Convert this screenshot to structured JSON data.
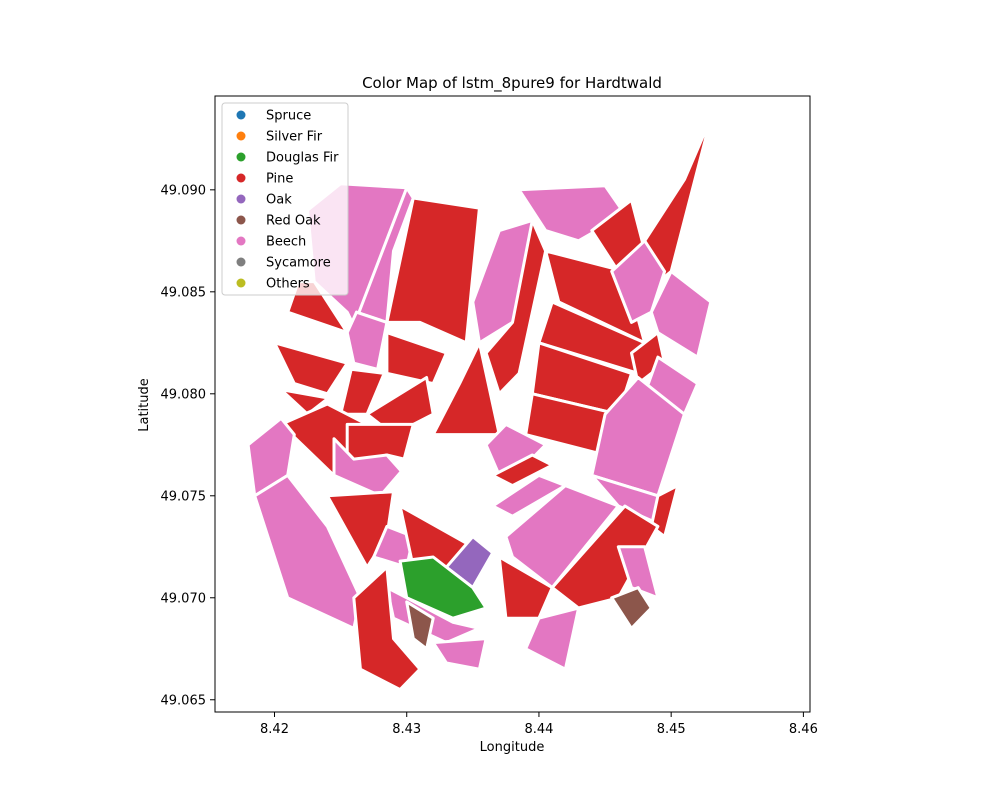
{
  "chart_data": {
    "type": "choropleth",
    "title": "Color Map of lstm_8pure9 for Hardtwald",
    "xlabel": "Longitude",
    "ylabel": "Latitude",
    "xlim": [
      8.4155,
      8.4605
    ],
    "ylim": [
      49.0644,
      49.0946
    ],
    "x_ticks": [
      "8.42",
      "8.43",
      "8.44",
      "8.45",
      "8.46"
    ],
    "y_ticks": [
      "49.065",
      "49.070",
      "49.075",
      "49.080",
      "49.085",
      "49.090"
    ],
    "legend_position": "upper-left",
    "legend": [
      {
        "label": "Spruce",
        "color": "#1f77b4"
      },
      {
        "label": "Silver Fir",
        "color": "#ff7f0e"
      },
      {
        "label": "Douglas Fir",
        "color": "#2ca02c"
      },
      {
        "label": "Pine",
        "color": "#d62728"
      },
      {
        "label": "Oak",
        "color": "#9467bd"
      },
      {
        "label": "Red Oak",
        "color": "#8c564b"
      },
      {
        "label": "Beech",
        "color": "#e377c2"
      },
      {
        "label": "Sycamore",
        "color": "#7f7f7f"
      },
      {
        "label": "Others",
        "color": "#bcbd22"
      }
    ],
    "parcels": [
      {
        "class": "Beech",
        "coords": [
          [
            8.4225,
            49.089
          ],
          [
            8.425,
            49.0903
          ],
          [
            8.43,
            49.0901
          ],
          [
            8.427,
            49.082
          ],
          [
            8.4255,
            49.084
          ],
          [
            8.423,
            49.0855
          ]
        ]
      },
      {
        "class": "Beech",
        "coords": [
          [
            8.43,
            49.0901
          ],
          [
            8.4305,
            49.0896
          ],
          [
            8.429,
            49.087
          ],
          [
            8.4285,
            49.0835
          ],
          [
            8.4262,
            49.084
          ],
          [
            8.4258,
            49.083
          ]
        ]
      },
      {
        "class": "Pine",
        "coords": [
          [
            8.4305,
            49.0896
          ],
          [
            8.4355,
            49.0891
          ],
          [
            8.4345,
            49.0825
          ],
          [
            8.431,
            49.0835
          ],
          [
            8.4285,
            49.0835
          ]
        ]
      },
      {
        "class": "Beech",
        "coords": [
          [
            8.4262,
            49.084
          ],
          [
            8.4285,
            49.0835
          ],
          [
            8.4278,
            49.0812
          ],
          [
            8.426,
            49.0815
          ],
          [
            8.4255,
            49.083
          ]
        ]
      },
      {
        "class": "Pine",
        "coords": [
          [
            8.421,
            49.084
          ],
          [
            8.4255,
            49.083
          ],
          [
            8.423,
            49.0855
          ],
          [
            8.4218,
            49.0855
          ]
        ]
      },
      {
        "class": "Pine",
        "coords": [
          [
            8.42,
            49.0825
          ],
          [
            8.4255,
            49.0815
          ],
          [
            8.424,
            49.08
          ],
          [
            8.4215,
            49.0805
          ]
        ]
      },
      {
        "class": "Pine",
        "coords": [
          [
            8.4205,
            49.0802
          ],
          [
            8.424,
            49.0798
          ],
          [
            8.4255,
            49.0805
          ],
          [
            8.4225,
            49.079
          ]
        ]
      },
      {
        "class": "Pine",
        "coords": [
          [
            8.4258,
            49.0812
          ],
          [
            8.4283,
            49.081
          ],
          [
            8.427,
            49.079
          ],
          [
            8.425,
            49.079
          ]
        ]
      },
      {
        "class": "Pine",
        "coords": [
          [
            8.4285,
            49.083
          ],
          [
            8.433,
            49.082
          ],
          [
            8.432,
            49.0805
          ],
          [
            8.4285,
            49.081
          ]
        ]
      },
      {
        "class": "Pine",
        "coords": [
          [
            8.427,
            49.079
          ],
          [
            8.4315,
            49.0808
          ],
          [
            8.432,
            49.079
          ],
          [
            8.429,
            49.078
          ]
        ]
      },
      {
        "class": "Pine",
        "coords": [
          [
            8.4205,
            49.0785
          ],
          [
            8.424,
            49.0795
          ],
          [
            8.427,
            49.0785
          ],
          [
            8.4255,
            49.076
          ],
          [
            8.4245,
            49.076
          ]
        ]
      },
      {
        "class": "Pine",
        "coords": [
          [
            8.4255,
            49.0785
          ],
          [
            8.4305,
            49.0785
          ],
          [
            8.4298,
            49.0768
          ],
          [
            8.4285,
            49.077
          ],
          [
            8.4255,
            49.0765
          ]
        ]
      },
      {
        "class": "Beech",
        "coords": [
          [
            8.418,
            49.0775
          ],
          [
            8.4205,
            49.0788
          ],
          [
            8.4215,
            49.078
          ],
          [
            8.421,
            49.076
          ],
          [
            8.4185,
            49.075
          ]
        ]
      },
      {
        "class": "Beech",
        "coords": [
          [
            8.4185,
            49.075
          ],
          [
            8.421,
            49.076
          ],
          [
            8.424,
            49.0735
          ],
          [
            8.4265,
            49.07
          ],
          [
            8.426,
            49.0685
          ],
          [
            8.421,
            49.07
          ]
        ]
      },
      {
        "class": "Beech",
        "coords": [
          [
            8.4245,
            49.0778
          ],
          [
            8.426,
            49.0768
          ],
          [
            8.4285,
            49.077
          ],
          [
            8.4296,
            49.0762
          ],
          [
            8.428,
            49.075
          ],
          [
            8.4245,
            49.076
          ]
        ]
      },
      {
        "class": "Pine",
        "coords": [
          [
            8.424,
            49.075
          ],
          [
            8.429,
            49.0752
          ],
          [
            8.4285,
            49.073
          ],
          [
            8.427,
            49.0715
          ]
        ]
      },
      {
        "class": "Beech",
        "coords": [
          [
            8.4275,
            49.072
          ],
          [
            8.4285,
            49.0735
          ],
          [
            8.4305,
            49.073
          ],
          [
            8.43,
            49.0715
          ]
        ]
      },
      {
        "class": "Pine",
        "coords": [
          [
            8.4295,
            49.0745
          ],
          [
            8.435,
            49.0725
          ],
          [
            8.433,
            49.071
          ],
          [
            8.4305,
            49.0715
          ]
        ]
      },
      {
        "class": "Pine",
        "coords": [
          [
            8.434,
            49.0805
          ],
          [
            8.4355,
            49.0825
          ],
          [
            8.437,
            49.078
          ],
          [
            8.432,
            49.078
          ]
        ]
      },
      {
        "class": "Beech",
        "coords": [
          [
            8.437,
            49.088
          ],
          [
            8.4395,
            49.0885
          ],
          [
            8.44,
            49.087
          ],
          [
            8.438,
            49.0835
          ],
          [
            8.4355,
            49.0825
          ],
          [
            8.435,
            49.0845
          ]
        ]
      },
      {
        "class": "Pine",
        "coords": [
          [
            8.4395,
            49.0885
          ],
          [
            8.4405,
            49.087
          ],
          [
            8.4385,
            49.081
          ],
          [
            8.437,
            49.08
          ],
          [
            8.436,
            49.082
          ],
          [
            8.438,
            49.0835
          ]
        ]
      },
      {
        "class": "Beech",
        "coords": [
          [
            8.4385,
            49.09
          ],
          [
            8.445,
            49.0902
          ],
          [
            8.4465,
            49.0888
          ],
          [
            8.443,
            49.0875
          ],
          [
            8.4405,
            49.088
          ]
        ]
      },
      {
        "class": "Pine",
        "coords": [
          [
            8.4405,
            49.087
          ],
          [
            8.4465,
            49.086
          ],
          [
            8.448,
            49.0825
          ],
          [
            8.4415,
            49.0845
          ]
        ]
      },
      {
        "class": "Pine",
        "coords": [
          [
            8.441,
            49.0845
          ],
          [
            8.448,
            49.0825
          ],
          [
            8.4475,
            49.081
          ],
          [
            8.44,
            49.0825
          ]
        ]
      },
      {
        "class": "Pine",
        "coords": [
          [
            8.44,
            49.0825
          ],
          [
            8.447,
            49.081
          ],
          [
            8.446,
            49.079
          ],
          [
            8.4395,
            49.08
          ]
        ]
      },
      {
        "class": "Pine",
        "coords": [
          [
            8.4395,
            49.08
          ],
          [
            8.446,
            49.079
          ],
          [
            8.445,
            49.077
          ],
          [
            8.439,
            49.078
          ]
        ]
      },
      {
        "class": "Pine",
        "coords": [
          [
            8.444,
            49.088
          ],
          [
            8.447,
            49.0895
          ],
          [
            8.448,
            49.087
          ],
          [
            8.446,
            49.086
          ]
        ]
      },
      {
        "class": "Pine",
        "coords": [
          [
            8.4475,
            49.087
          ],
          [
            8.451,
            49.0905
          ],
          [
            8.453,
            49.0935
          ],
          [
            8.45,
            49.086
          ],
          [
            8.4485,
            49.0852
          ]
        ]
      },
      {
        "class": "Beech",
        "coords": [
          [
            8.4455,
            49.086
          ],
          [
            8.448,
            49.0875
          ],
          [
            8.4495,
            49.086
          ],
          [
            8.4485,
            49.084
          ],
          [
            8.447,
            49.0835
          ]
        ]
      },
      {
        "class": "Beech",
        "coords": [
          [
            8.4485,
            49.084
          ],
          [
            8.45,
            49.086
          ],
          [
            8.453,
            49.0845
          ],
          [
            8.452,
            49.0818
          ],
          [
            8.449,
            49.083
          ]
        ]
      },
      {
        "class": "Pine",
        "coords": [
          [
            8.447,
            49.082
          ],
          [
            8.449,
            49.083
          ],
          [
            8.4495,
            49.0815
          ],
          [
            8.4475,
            49.0805
          ]
        ]
      },
      {
        "class": "Beech",
        "coords": [
          [
            8.449,
            49.0818
          ],
          [
            8.452,
            49.0805
          ],
          [
            8.451,
            49.079
          ],
          [
            8.448,
            49.08
          ]
        ]
      },
      {
        "class": "Beech",
        "coords": [
          [
            8.445,
            49.079
          ],
          [
            8.4475,
            49.0808
          ],
          [
            8.451,
            49.079
          ],
          [
            8.449,
            49.075
          ],
          [
            8.444,
            49.076
          ]
        ]
      },
      {
        "class": "Beech",
        "coords": [
          [
            8.444,
            49.076
          ],
          [
            8.449,
            49.075
          ],
          [
            8.4495,
            49.0735
          ],
          [
            8.446,
            49.0745
          ]
        ]
      },
      {
        "class": "Pine",
        "coords": [
          [
            8.449,
            49.075
          ],
          [
            8.4505,
            49.0755
          ],
          [
            8.4495,
            49.073
          ],
          [
            8.4485,
            49.0735
          ]
        ]
      },
      {
        "class": "Beech",
        "coords": [
          [
            8.436,
            49.0775
          ],
          [
            8.4375,
            49.0785
          ],
          [
            8.4405,
            49.0775
          ],
          [
            8.439,
            49.0765
          ],
          [
            8.437,
            49.076
          ]
        ]
      },
      {
        "class": "Pine",
        "coords": [
          [
            8.4365,
            49.076
          ],
          [
            8.4395,
            49.077
          ],
          [
            8.441,
            49.0765
          ],
          [
            8.438,
            49.0755
          ]
        ]
      },
      {
        "class": "Beech",
        "coords": [
          [
            8.4365,
            49.0745
          ],
          [
            8.44,
            49.076
          ],
          [
            8.442,
            49.0755
          ],
          [
            8.438,
            49.074
          ]
        ]
      },
      {
        "class": "Beech",
        "coords": [
          [
            8.4375,
            49.073
          ],
          [
            8.442,
            49.0755
          ],
          [
            8.446,
            49.0745
          ],
          [
            8.441,
            49.0705
          ],
          [
            8.438,
            49.072
          ]
        ]
      },
      {
        "class": "Pine",
        "coords": [
          [
            8.441,
            49.0705
          ],
          [
            8.4465,
            49.0745
          ],
          [
            8.449,
            49.0735
          ],
          [
            8.446,
            49.07
          ],
          [
            8.443,
            49.0695
          ]
        ]
      },
      {
        "class": "Pine",
        "coords": [
          [
            8.437,
            49.072
          ],
          [
            8.441,
            49.0705
          ],
          [
            8.44,
            49.069
          ],
          [
            8.4375,
            49.069
          ]
        ]
      },
      {
        "class": "Beech",
        "coords": [
          [
            8.44,
            49.069
          ],
          [
            8.443,
            49.0695
          ],
          [
            8.442,
            49.0665
          ],
          [
            8.439,
            49.0675
          ]
        ]
      },
      {
        "class": "Beech",
        "coords": [
          [
            8.446,
            49.0725
          ],
          [
            8.448,
            49.0725
          ],
          [
            8.449,
            49.07
          ],
          [
            8.447,
            49.0705
          ]
        ]
      },
      {
        "class": "Red Oak",
        "coords": [
          [
            8.4455,
            49.07
          ],
          [
            8.4475,
            49.0705
          ],
          [
            8.4485,
            49.0695
          ],
          [
            8.447,
            49.0685
          ]
        ]
      },
      {
        "class": "Oak",
        "coords": [
          [
            8.433,
            49.0715
          ],
          [
            8.435,
            49.073
          ],
          [
            8.4365,
            49.0722
          ],
          [
            8.435,
            49.0705
          ]
        ]
      },
      {
        "class": "Douglas Fir",
        "coords": [
          [
            8.4295,
            49.0718
          ],
          [
            8.432,
            49.072
          ],
          [
            8.435,
            49.0705
          ],
          [
            8.436,
            49.0695
          ],
          [
            8.4335,
            49.069
          ],
          [
            8.43,
            49.07
          ]
        ]
      },
      {
        "class": "Beech",
        "coords": [
          [
            8.4285,
            49.0705
          ],
          [
            8.43,
            49.07
          ],
          [
            8.4335,
            49.0688
          ],
          [
            8.4355,
            49.0685
          ],
          [
            8.433,
            49.0678
          ],
          [
            8.429,
            49.069
          ]
        ]
      },
      {
        "class": "Red Oak",
        "coords": [
          [
            8.43,
            49.0698
          ],
          [
            8.432,
            49.069
          ],
          [
            8.4315,
            49.0675
          ],
          [
            8.4305,
            49.068
          ]
        ]
      },
      {
        "class": "Beech",
        "coords": [
          [
            8.432,
            49.0678
          ],
          [
            8.436,
            49.068
          ],
          [
            8.4355,
            49.0665
          ],
          [
            8.433,
            49.0668
          ]
        ]
      },
      {
        "class": "Pine",
        "coords": [
          [
            8.426,
            49.07
          ],
          [
            8.4285,
            49.0715
          ],
          [
            8.429,
            49.068
          ],
          [
            8.431,
            49.0665
          ],
          [
            8.4295,
            49.0655
          ],
          [
            8.4265,
            49.0665
          ]
        ]
      }
    ]
  }
}
